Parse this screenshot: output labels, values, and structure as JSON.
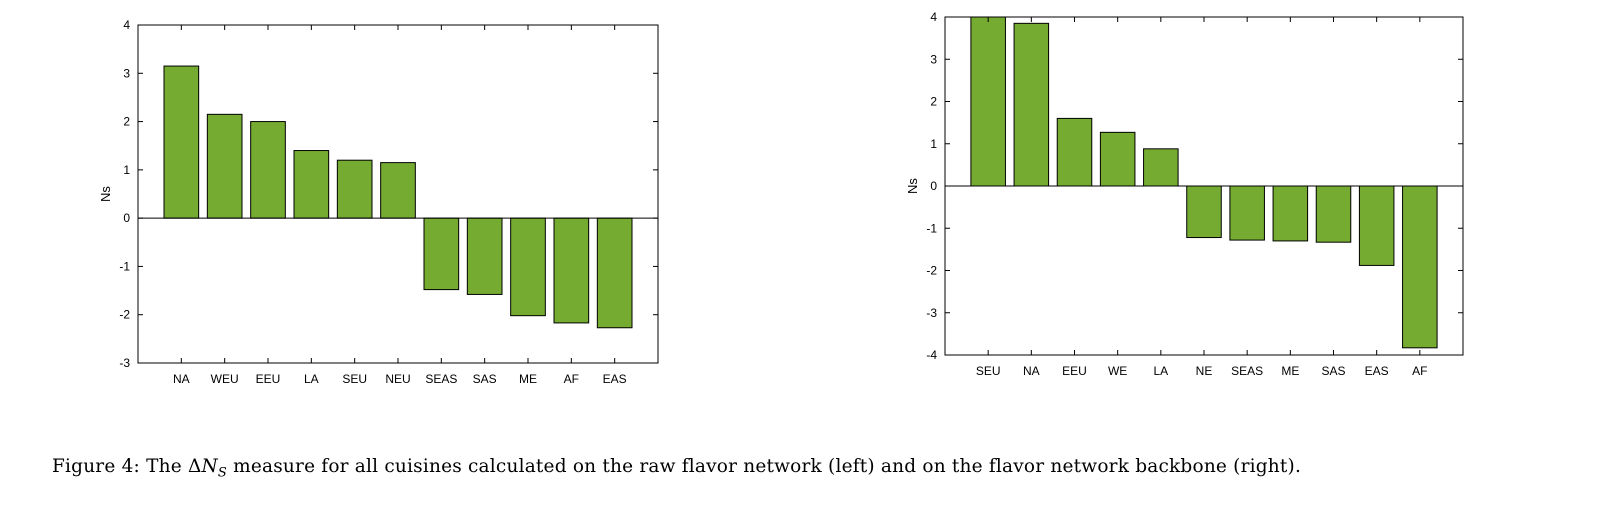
{
  "chart_data": [
    {
      "type": "bar",
      "ylabel": "Ns",
      "ylim": [
        -3,
        4
      ],
      "yticks": [
        "-3",
        "-2",
        "-1",
        "0",
        "1",
        "2",
        "3",
        "4"
      ],
      "categories": [
        "NA",
        "WEU",
        "EEU",
        "LA",
        "SEU",
        "NEU",
        "SEAS",
        "SAS",
        "ME",
        "AF",
        "EAS"
      ],
      "values": [
        3.15,
        2.15,
        2.0,
        1.4,
        1.2,
        1.15,
        -1.48,
        -1.58,
        -2.02,
        -2.17,
        -2.27
      ],
      "color": "#76ab31"
    },
    {
      "type": "bar",
      "ylabel": "Ns",
      "ylim": [
        -4,
        4
      ],
      "yticks": [
        "-4",
        "-3",
        "-2",
        "-1",
        "0",
        "1",
        "2",
        "3",
        "4"
      ],
      "categories": [
        "SEU",
        "NA",
        "EEU",
        "WE",
        "LA",
        "NE",
        "SEAS",
        "ME",
        "SAS",
        "EAS",
        "AF"
      ],
      "values": [
        4.0,
        3.85,
        1.6,
        1.27,
        0.88,
        -1.22,
        -1.28,
        -1.3,
        -1.33,
        -1.88,
        -3.83
      ],
      "color": "#76ab31"
    }
  ],
  "caption": {
    "prefix": "Figure 4: The ",
    "delta": "Δ",
    "symbol": "N",
    "subscript": "S",
    "suffix": " measure for all cuisines calculated on the raw flavor network (left) and on the flavor network backbone (right)."
  }
}
